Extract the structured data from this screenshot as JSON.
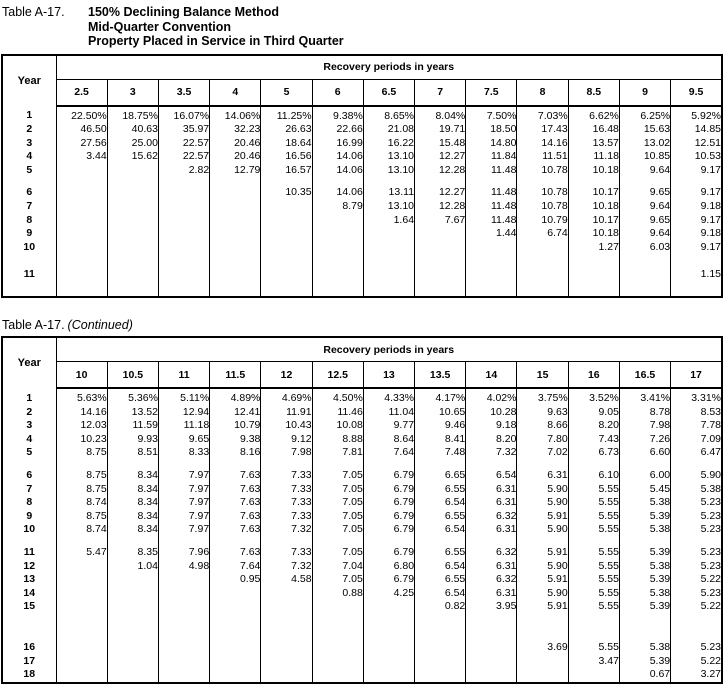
{
  "page": {
    "background": "#ffffff",
    "text_color": "#000000"
  },
  "tables": [
    {
      "label": "Table A-17.",
      "title_lines": [
        "150% Declining Balance Method",
        "Mid-Quarter Convention",
        "Property Placed in Service in Third Quarter"
      ],
      "year_header": "Year",
      "span_header": "Recovery periods in years",
      "columns": [
        "2.5",
        "3",
        "3.5",
        "4",
        "5",
        "6",
        "6.5",
        "7",
        "7.5",
        "8",
        "8.5",
        "9",
        "9.5"
      ],
      "rows": [
        {
          "year": "1",
          "values": [
            "22.50%",
            "18.75%",
            "16.07%",
            "14.06%",
            "11.25%",
            "9.38%",
            "8.65%",
            "8.04%",
            "7.50%",
            "7.03%",
            "6.62%",
            "6.25%",
            "5.92%"
          ]
        },
        {
          "year": "2",
          "values": [
            "46.50",
            "40.63",
            "35.97",
            "32.23",
            "26.63",
            "22.66",
            "21.08",
            "19.71",
            "18.50",
            "17.43",
            "16.48",
            "15.63",
            "14.85"
          ]
        },
        {
          "year": "3",
          "values": [
            "27.56",
            "25.00",
            "22.57",
            "20.46",
            "18.64",
            "16.99",
            "16.22",
            "15.48",
            "14.80",
            "14.16",
            "13.57",
            "13.02",
            "12.51"
          ]
        },
        {
          "year": "4",
          "values": [
            "3.44",
            "15.62",
            "22.57",
            "20.46",
            "16.56",
            "14.06",
            "13.10",
            "12.27",
            "11.84",
            "11.51",
            "11.18",
            "10.85",
            "10.53"
          ]
        },
        {
          "year": "5",
          "values": [
            "",
            "",
            "2.82",
            "12.79",
            "16.57",
            "14.06",
            "13.10",
            "12.28",
            "11.48",
            "10.78",
            "10.18",
            "9.64",
            "9.17"
          ]
        },
        {
          "spacer": "sm"
        },
        {
          "year": "6",
          "values": [
            "",
            "",
            "",
            "",
            "10.35",
            "14.06",
            "13.11",
            "12.27",
            "11.48",
            "10.78",
            "10.17",
            "9.65",
            "9.17"
          ]
        },
        {
          "year": "7",
          "values": [
            "",
            "",
            "",
            "",
            "",
            "8.79",
            "13.10",
            "12.28",
            "11.48",
            "10.78",
            "10.18",
            "9.64",
            "9.18"
          ]
        },
        {
          "year": "8",
          "values": [
            "",
            "",
            "",
            "",
            "",
            "",
            "1.64",
            "7.67",
            "11.48",
            "10.79",
            "10.17",
            "9.65",
            "9.17"
          ]
        },
        {
          "year": "9",
          "values": [
            "",
            "",
            "",
            "",
            "",
            "",
            "",
            "",
            "1.44",
            "6.74",
            "10.18",
            "9.64",
            "9.18"
          ]
        },
        {
          "year": "10",
          "values": [
            "",
            "",
            "",
            "",
            "",
            "",
            "",
            "",
            "",
            "",
            "1.27",
            "6.03",
            "9.17"
          ]
        },
        {
          "spacer": "md"
        },
        {
          "year": "11",
          "values": [
            "",
            "",
            "",
            "",
            "",
            "",
            "",
            "",
            "",
            "",
            "",
            "",
            "1.15"
          ]
        },
        {
          "spacer": "md"
        }
      ]
    },
    {
      "label": "Table A-17.",
      "continued": "(Continued)",
      "year_header": "Year",
      "span_header": "Recovery periods in years",
      "columns": [
        "10",
        "10.5",
        "11",
        "11.5",
        "12",
        "12.5",
        "13",
        "13.5",
        "14",
        "15",
        "16",
        "16.5",
        "17"
      ],
      "rows": [
        {
          "year": "1",
          "values": [
            "5.63%",
            "5.36%",
            "5.11%",
            "4.89%",
            "4.69%",
            "4.50%",
            "4.33%",
            "4.17%",
            "4.02%",
            "3.75%",
            "3.52%",
            "3.41%",
            "3.31%"
          ]
        },
        {
          "year": "2",
          "values": [
            "14.16",
            "13.52",
            "12.94",
            "12.41",
            "11.91",
            "11.46",
            "11.04",
            "10.65",
            "10.28",
            "9.63",
            "9.05",
            "8.78",
            "8.53"
          ]
        },
        {
          "year": "3",
          "values": [
            "12.03",
            "11.59",
            "11.18",
            "10.79",
            "10.43",
            "10.08",
            "9.77",
            "9.46",
            "9.18",
            "8.66",
            "8.20",
            "7.98",
            "7.78"
          ]
        },
        {
          "year": "4",
          "values": [
            "10.23",
            "9.93",
            "9.65",
            "9.38",
            "9.12",
            "8.88",
            "8.64",
            "8.41",
            "8.20",
            "7.80",
            "7.43",
            "7.26",
            "7.09"
          ]
        },
        {
          "year": "5",
          "values": [
            "8.75",
            "8.51",
            "8.33",
            "8.16",
            "7.98",
            "7.81",
            "7.64",
            "7.48",
            "7.32",
            "7.02",
            "6.73",
            "6.60",
            "6.47"
          ]
        },
        {
          "spacer": "sm"
        },
        {
          "year": "6",
          "values": [
            "8.75",
            "8.34",
            "7.97",
            "7.63",
            "7.33",
            "7.05",
            "6.79",
            "6.65",
            "6.54",
            "6.31",
            "6.10",
            "6.00",
            "5.90"
          ]
        },
        {
          "year": "7",
          "values": [
            "8.75",
            "8.34",
            "7.97",
            "7.63",
            "7.33",
            "7.05",
            "6.79",
            "6.55",
            "6.31",
            "5.90",
            "5.55",
            "5.45",
            "5.38"
          ]
        },
        {
          "year": "8",
          "values": [
            "8.74",
            "8.34",
            "7.97",
            "7.63",
            "7.33",
            "7.05",
            "6.79",
            "6.54",
            "6.31",
            "5.90",
            "5.55",
            "5.38",
            "5.23"
          ]
        },
        {
          "year": "9",
          "values": [
            "8.75",
            "8.34",
            "7.97",
            "7.63",
            "7.33",
            "7.05",
            "6.79",
            "6.55",
            "6.32",
            "5.91",
            "5.55",
            "5.39",
            "5.23"
          ]
        },
        {
          "year": "10",
          "values": [
            "8.74",
            "8.34",
            "7.97",
            "7.63",
            "7.32",
            "7.05",
            "6.79",
            "6.54",
            "6.31",
            "5.90",
            "5.55",
            "5.38",
            "5.23"
          ]
        },
        {
          "spacer": "sm"
        },
        {
          "year": "11",
          "values": [
            "5.47",
            "8.35",
            "7.96",
            "7.63",
            "7.33",
            "7.05",
            "6.79",
            "6.55",
            "6.32",
            "5.91",
            "5.55",
            "5.39",
            "5.23"
          ]
        },
        {
          "year": "12",
          "values": [
            "",
            "1.04",
            "4.98",
            "7.64",
            "7.32",
            "7.04",
            "6.80",
            "6.54",
            "6.31",
            "5.90",
            "5.55",
            "5.38",
            "5.23"
          ]
        },
        {
          "year": "13",
          "values": [
            "",
            "",
            "",
            "0.95",
            "4.58",
            "7.05",
            "6.79",
            "6.55",
            "6.32",
            "5.91",
            "5.55",
            "5.39",
            "5.22"
          ]
        },
        {
          "year": "14",
          "values": [
            "",
            "",
            "",
            "",
            "",
            "0.88",
            "4.25",
            "6.54",
            "6.31",
            "5.90",
            "5.55",
            "5.38",
            "5.23"
          ]
        },
        {
          "year": "15",
          "values": [
            "",
            "",
            "",
            "",
            "",
            "",
            "",
            "0.82",
            "3.95",
            "5.91",
            "5.55",
            "5.39",
            "5.22"
          ]
        },
        {
          "spacer": "lg"
        },
        {
          "year": "16",
          "values": [
            "",
            "",
            "",
            "",
            "",
            "",
            "",
            "",
            "",
            "3.69",
            "5.55",
            "5.38",
            "5.23"
          ]
        },
        {
          "year": "17",
          "values": [
            "",
            "",
            "",
            "",
            "",
            "",
            "",
            "",
            "",
            "",
            "3.47",
            "5.39",
            "5.22"
          ]
        },
        {
          "year": "18",
          "values": [
            "",
            "",
            "",
            "",
            "",
            "",
            "",
            "",
            "",
            "",
            "",
            "0.67",
            "3.27"
          ]
        }
      ]
    }
  ]
}
